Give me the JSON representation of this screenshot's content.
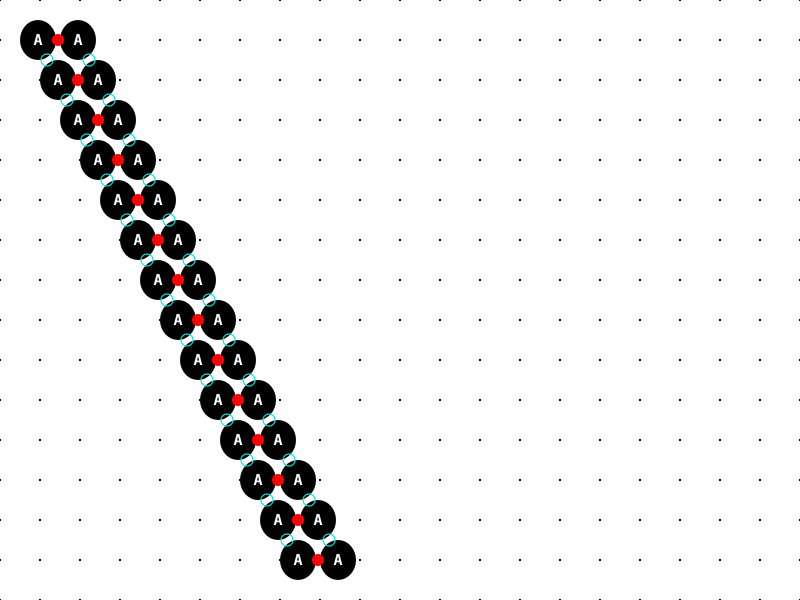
{
  "diagram": {
    "node_label": "A",
    "rows": 14,
    "nodes_per_row": 2,
    "colors": {
      "background": "#ffffff",
      "grid_dot": "#000000",
      "node_fill": "#000000",
      "node_text": "#ffffff",
      "bond": "#ff0000",
      "link_ring": "#00e5e5"
    }
  }
}
